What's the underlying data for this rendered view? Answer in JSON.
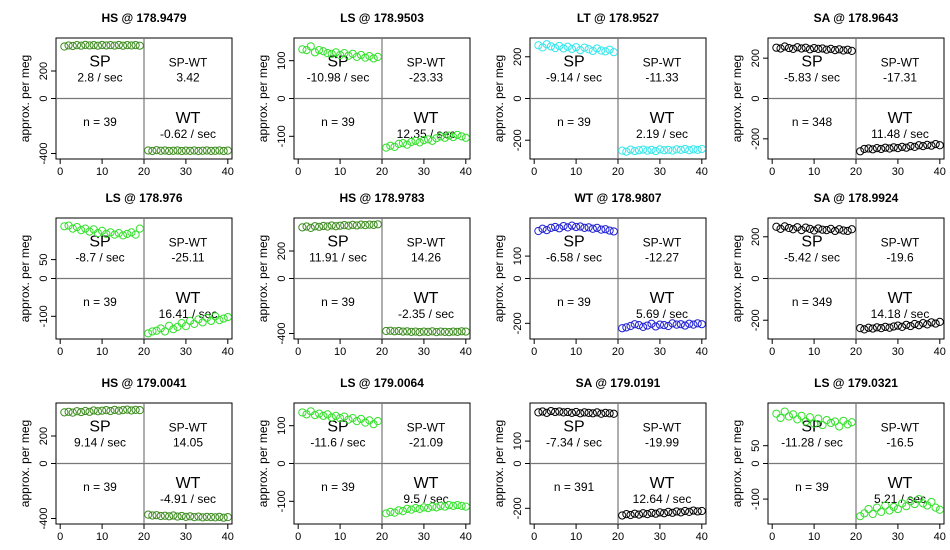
{
  "chart_data": [
    {
      "type": "scatter",
      "title": "HS @ 178.9479",
      "ylabel": "approx. per meg",
      "ylim": [
        -440,
        440
      ],
      "yticks": [
        -400,
        0,
        200
      ],
      "xlim": [
        -1,
        41
      ],
      "xticks": [
        0,
        10,
        20,
        30,
        40
      ],
      "color": "#3c8c1e",
      "stats": {
        "sp": "2.8 / sec",
        "spwt": "3.42",
        "wt": "-0.62 / sec",
        "n": "n = 39"
      },
      "sp_values": [
        378,
        386,
        382,
        388,
        384,
        390,
        386,
        388,
        384,
        389,
        386,
        388,
        385,
        389,
        384,
        388,
        386,
        388,
        384
      ],
      "wt_values": [
        -378,
        -382,
        -376,
        -380,
        -378,
        -382,
        -380,
        -378,
        -382,
        -379,
        -381,
        -378,
        -382,
        -380,
        -378,
        -381,
        -380,
        -378,
        -382,
        -379
      ]
    },
    {
      "type": "scatter",
      "title": "LS @ 178.9503",
      "ylabel": "approx. per meg",
      "ylim": [
        -160,
        160
      ],
      "yticks": [
        -100,
        0,
        100
      ],
      "xlim": [
        -1,
        41
      ],
      "xticks": [
        0,
        10,
        20,
        30,
        40
      ],
      "color": "#33e02a",
      "stats": {
        "sp": "-10.98 / sec",
        "spwt": "-23.33",
        "wt": "12.35 / sec",
        "n": "n = 39"
      },
      "sp_values": [
        130,
        128,
        138,
        122,
        128,
        125,
        120,
        118,
        122,
        115,
        120,
        113,
        118,
        110,
        115,
        108,
        112,
        106,
        110
      ],
      "wt_values": [
        -130,
        -125,
        -128,
        -120,
        -118,
        -122,
        -115,
        -112,
        -116,
        -110,
        -108,
        -112,
        -105,
        -100,
        -104,
        -98,
        -102,
        -96,
        -100,
        -104
      ]
    },
    {
      "type": "scatter",
      "title": "LT @ 178.9527",
      "ylabel": "approx. per meg",
      "ylim": [
        -290,
        290
      ],
      "yticks": [
        -200,
        0,
        200
      ],
      "xlim": [
        -1,
        41
      ],
      "xticks": [
        0,
        10,
        20,
        30,
        40
      ],
      "color": "#35e6ec",
      "stats": {
        "sp": "-9.14 / sec",
        "spwt": "-11.33",
        "wt": "2.19 / sec",
        "n": "n = 39"
      },
      "sp_values": [
        255,
        245,
        260,
        250,
        242,
        252,
        240,
        248,
        238,
        246,
        232,
        244,
        236,
        228,
        240,
        230,
        226,
        234,
        222
      ],
      "wt_values": [
        -250,
        -255,
        -245,
        -252,
        -248,
        -245,
        -250,
        -246,
        -252,
        -244,
        -248,
        -246,
        -250,
        -244,
        -246,
        -242,
        -248,
        -244,
        -246,
        -242
      ]
    },
    {
      "type": "scatter",
      "title": "SA @ 178.9643",
      "ylabel": "approx. per meg",
      "ylim": [
        -300,
        300
      ],
      "yticks": [
        -200,
        0,
        200
      ],
      "xlim": [
        -1,
        41
      ],
      "xticks": [
        0,
        10,
        20,
        30,
        40
      ],
      "color": "#000000",
      "stats": {
        "sp": "-5.83 / sec",
        "spwt": "-17.31",
        "wt": "11.48 / sec",
        "n": "n = 348"
      },
      "sp_values": [
        252,
        248,
        258,
        250,
        246,
        254,
        248,
        252,
        244,
        250,
        246,
        248,
        242,
        246,
        240,
        244,
        238,
        242,
        236
      ],
      "wt_values": [
        -262,
        -250,
        -248,
        -252,
        -246,
        -250,
        -244,
        -248,
        -242,
        -246,
        -240,
        -244,
        -236,
        -240,
        -232,
        -236,
        -230,
        -234,
        -226,
        -232
      ]
    },
    {
      "type": "scatter",
      "title": "LS @ 178.976",
      "ylabel": "approx. per meg",
      "ylim": [
        -160,
        160
      ],
      "yticks": [
        -100,
        0,
        50
      ],
      "xlim": [
        -1,
        41
      ],
      "xticks": [
        0,
        10,
        20,
        30,
        40
      ],
      "color": "#33e02a",
      "stats": {
        "sp": "-8.7 / sec",
        "spwt": "-25.11",
        "wt": "16.41 / sec",
        "n": "n = 39"
      },
      "sp_values": [
        138,
        140,
        132,
        136,
        128,
        132,
        124,
        130,
        120,
        126,
        118,
        122,
        116,
        120,
        114,
        118,
        122,
        116,
        132
      ],
      "wt_values": [
        -145,
        -140,
        -138,
        -132,
        -140,
        -125,
        -134,
        -128,
        -118,
        -126,
        -112,
        -120,
        -108,
        -116,
        -104,
        -112,
        -100,
        -110,
        -106,
        -102
      ]
    },
    {
      "type": "scatter",
      "title": "HS @ 178.9783",
      "ylabel": "approx. per meg",
      "ylim": [
        -440,
        440
      ],
      "yticks": [
        -400,
        0,
        200
      ],
      "xlim": [
        -1,
        41
      ],
      "xticks": [
        0,
        10,
        20,
        30,
        40
      ],
      "color": "#3c8c1e",
      "stats": {
        "sp": "11.91 / sec",
        "spwt": "14.26",
        "wt": "-2.35 / sec",
        "n": "n = 39"
      },
      "sp_values": [
        372,
        378,
        368,
        380,
        376,
        382,
        378,
        386,
        380,
        384,
        388,
        384,
        390,
        386,
        392,
        388,
        392,
        390,
        394
      ],
      "wt_values": [
        -382,
        -380,
        -384,
        -382,
        -386,
        -384,
        -388,
        -386,
        -390,
        -386,
        -388,
        -384,
        -390,
        -386,
        -388,
        -390,
        -386,
        -388,
        -384,
        -386
      ]
    },
    {
      "type": "scatter",
      "title": "WT @ 178.9807",
      "ylabel": "approx. per meg",
      "ylim": [
        -270,
        270
      ],
      "yticks": [
        -200,
        0,
        100
      ],
      "xlim": [
        -1,
        41
      ],
      "xticks": [
        0,
        10,
        20,
        30,
        40
      ],
      "color": "#1f1fd4",
      "stats": {
        "sp": "-6.58 / sec",
        "spwt": "-12.27",
        "wt": "5.69 / sec",
        "n": "n = 39"
      },
      "sp_values": [
        212,
        222,
        216,
        226,
        230,
        224,
        234,
        228,
        236,
        230,
        232,
        226,
        228,
        222,
        226,
        218,
        220,
        214,
        210
      ],
      "wt_values": [
        -222,
        -218,
        -212,
        -204,
        -208,
        -216,
        -210,
        -202,
        -214,
        -206,
        -208,
        -212,
        -200,
        -206,
        -204,
        -210,
        -202,
        -206,
        -200,
        -204
      ]
    },
    {
      "type": "scatter",
      "title": "SA @ 178.9924",
      "ylabel": "approx. per meg",
      "ylim": [
        -290,
        290
      ],
      "yticks": [
        -200,
        0,
        200
      ],
      "xlim": [
        -1,
        41
      ],
      "xticks": [
        0,
        10,
        20,
        30,
        40
      ],
      "color": "#000000",
      "stats": {
        "sp": "-5.42 / sec",
        "spwt": "-19.6",
        "wt": "14.18 / sec",
        "n": "n = 349"
      },
      "sp_values": [
        248,
        238,
        250,
        242,
        236,
        246,
        232,
        244,
        238,
        230,
        240,
        234,
        232,
        238,
        228,
        236,
        230,
        228,
        236
      ],
      "wt_values": [
        -238,
        -244,
        -236,
        -240,
        -234,
        -238,
        -232,
        -236,
        -230,
        -226,
        -232,
        -222,
        -228,
        -218,
        -224,
        -214,
        -220,
        -210,
        -216,
        -208
      ]
    },
    {
      "type": "scatter",
      "title": "HS @ 179.0041",
      "ylabel": "approx. per meg",
      "ylim": [
        -440,
        440
      ],
      "yticks": [
        -400,
        0,
        200
      ],
      "xlim": [
        -1,
        41
      ],
      "xticks": [
        0,
        10,
        20,
        30,
        40
      ],
      "color": "#3c8c1e",
      "stats": {
        "sp": "9.14 / sec",
        "spwt": "14.05",
        "wt": "-4.91 / sec",
        "n": "n = 39"
      },
      "sp_values": [
        372,
        376,
        370,
        380,
        374,
        382,
        376,
        386,
        380,
        384,
        388,
        382,
        390,
        384,
        388,
        392,
        386,
        390,
        388
      ],
      "wt_values": [
        -372,
        -378,
        -376,
        -382,
        -380,
        -384,
        -378,
        -386,
        -382,
        -388,
        -384,
        -390,
        -386,
        -392,
        -388,
        -390,
        -392,
        -388,
        -394,
        -390
      ]
    },
    {
      "type": "scatter",
      "title": "LS @ 179.0064",
      "ylabel": "approx. per meg",
      "ylim": [
        -160,
        160
      ],
      "yticks": [
        -100,
        0,
        100
      ],
      "xlim": [
        -1,
        41
      ],
      "xticks": [
        0,
        10,
        20,
        30,
        40
      ],
      "color": "#33e02a",
      "stats": {
        "sp": "-11.6 / sec",
        "spwt": "-21.09",
        "wt": "9.5 / sec",
        "n": "n = 39"
      },
      "sp_values": [
        135,
        130,
        138,
        128,
        132,
        126,
        130,
        122,
        126,
        120,
        124,
        116,
        120,
        112,
        118,
        108,
        114,
        104,
        112
      ],
      "wt_values": [
        -132,
        -128,
        -130,
        -124,
        -126,
        -120,
        -122,
        -118,
        -120,
        -116,
        -118,
        -114,
        -116,
        -112,
        -114,
        -110,
        -112,
        -110,
        -112,
        -114
      ]
    },
    {
      "type": "scatter",
      "title": "SA @ 179.0191",
      "ylabel": "approx. per meg",
      "ylim": [
        -270,
        270
      ],
      "yticks": [
        -200,
        0,
        100
      ],
      "xlim": [
        -1,
        41
      ],
      "xticks": [
        0,
        10,
        20,
        30,
        40
      ],
      "color": "#000000",
      "stats": {
        "sp": "-7.34 / sec",
        "spwt": "-19.99",
        "wt": "12.64 / sec",
        "n": "n = 391"
      },
      "sp_values": [
        228,
        232,
        226,
        234,
        230,
        232,
        228,
        230,
        226,
        230,
        224,
        228,
        226,
        224,
        228,
        222,
        226,
        224,
        222
      ],
      "wt_values": [
        -232,
        -226,
        -230,
        -224,
        -228,
        -222,
        -226,
        -220,
        -224,
        -218,
        -222,
        -216,
        -220,
        -214,
        -218,
        -212,
        -216,
        -210,
        -214,
        -212
      ]
    },
    {
      "type": "scatter",
      "title": "LS @ 179.0321",
      "ylabel": "approx. per meg",
      "ylim": [
        -170,
        170
      ],
      "yticks": [
        -100,
        0,
        50
      ],
      "xlim": [
        -1,
        41
      ],
      "xticks": [
        0,
        10,
        20,
        30,
        40
      ],
      "color": "#33e02a",
      "stats": {
        "sp": "-11.28 / sec",
        "spwt": "-16.5",
        "wt": "5.21 / sec",
        "n": "n = 39"
      },
      "sp_values": [
        140,
        128,
        146,
        132,
        138,
        124,
        134,
        118,
        130,
        112,
        126,
        108,
        122,
        114,
        118,
        104,
        120,
        110,
        116
      ],
      "wt_values": [
        -148,
        -140,
        -128,
        -142,
        -124,
        -136,
        -118,
        -132,
        -122,
        -128,
        -112,
        -120,
        -106,
        -114,
        -100,
        -112,
        -118,
        -108,
        -124,
        -130
      ]
    }
  ]
}
